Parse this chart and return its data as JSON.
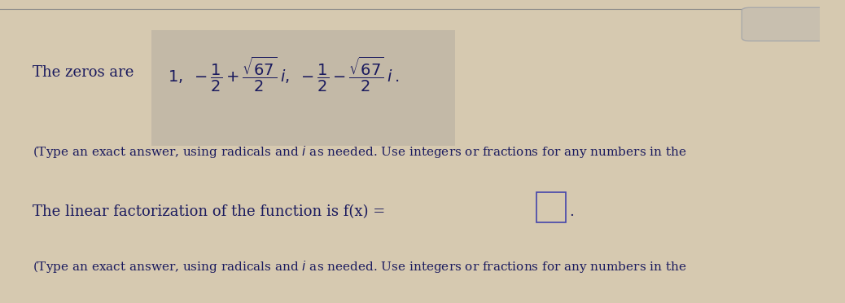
{
  "bg_color": "#d6c9b0",
  "fig_bg_color": "#d6c9b0",
  "text_color": "#1a1a5e",
  "highlight_bg": "#b8b0a0",
  "line_color": "#888888",
  "title_bar_color": "#c8bfaf",
  "dots_color": "#888888",
  "font_size_main": 13,
  "font_size_small": 11,
  "line1_prefix": "The zeros are  ",
  "line1_zeros": "1,",
  "line2_note": "(Type an exact answer, using radicals and i as needed. Use integers or fractions for any numbers in the",
  "line3_prefix": "The linear factorization of the function is f(x) =",
  "line4_note": "(Type an exact answer, using radicals and i as needed. Use integers or fractions for any numbers in the"
}
